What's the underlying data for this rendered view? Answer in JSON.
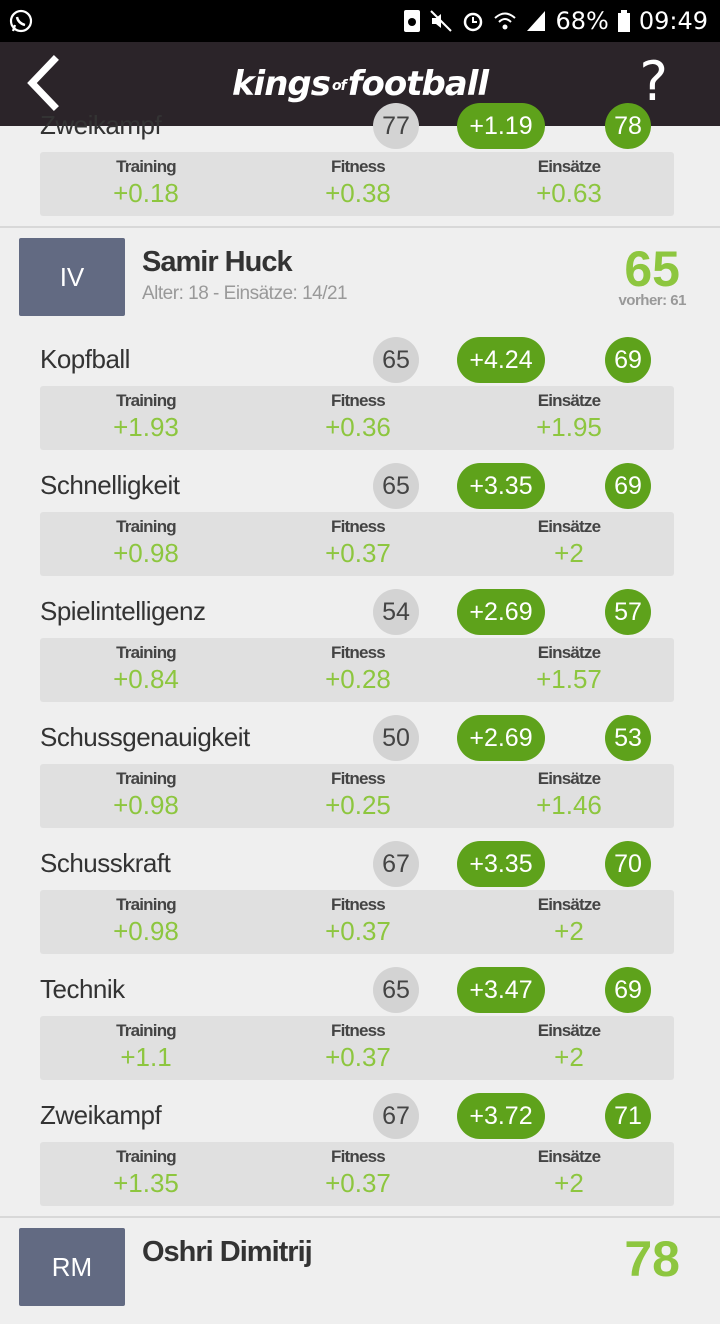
{
  "statusbar": {
    "battery": "68%",
    "time": "09:49"
  },
  "app": {
    "title_left": "kings",
    "title_of": "of",
    "title_right": "football",
    "help": "?"
  },
  "breakdown_labels": {
    "training": "Training",
    "fitness": "Fitness",
    "games": "Einsätze"
  },
  "previous_player_last_stat": {
    "name": "Zweikampf",
    "old": "77",
    "delta": "+1.19",
    "new": "78",
    "training": "+0.18",
    "fitness": "+0.38",
    "games": "+0.63"
  },
  "player": {
    "position": "IV",
    "name": "Samir Huck",
    "meta": "Alter: 18 - Einsätze: 14/21",
    "rating": "65",
    "previous": "vorher: 61",
    "stats": [
      {
        "name": "Kopfball",
        "old": "65",
        "delta": "+4.24",
        "new": "69",
        "training": "+1.93",
        "fitness": "+0.36",
        "games": "+1.95"
      },
      {
        "name": "Schnelligkeit",
        "old": "65",
        "delta": "+3.35",
        "new": "69",
        "training": "+0.98",
        "fitness": "+0.37",
        "games": "+2"
      },
      {
        "name": "Spielintelligenz",
        "old": "54",
        "delta": "+2.69",
        "new": "57",
        "training": "+0.84",
        "fitness": "+0.28",
        "games": "+1.57"
      },
      {
        "name": "Schussgenauigkeit",
        "old": "50",
        "delta": "+2.69",
        "new": "53",
        "training": "+0.98",
        "fitness": "+0.25",
        "games": "+1.46"
      },
      {
        "name": "Schusskraft",
        "old": "67",
        "delta": "+3.35",
        "new": "70",
        "training": "+0.98",
        "fitness": "+0.37",
        "games": "+2"
      },
      {
        "name": "Technik",
        "old": "65",
        "delta": "+3.47",
        "new": "69",
        "training": "+1.1",
        "fitness": "+0.37",
        "games": "+2"
      },
      {
        "name": "Zweikampf",
        "old": "67",
        "delta": "+3.72",
        "new": "71",
        "training": "+1.35",
        "fitness": "+0.37",
        "games": "+2"
      }
    ]
  },
  "next_player": {
    "position": "RM",
    "name": "Oshri Dimitrij",
    "rating": "78"
  }
}
